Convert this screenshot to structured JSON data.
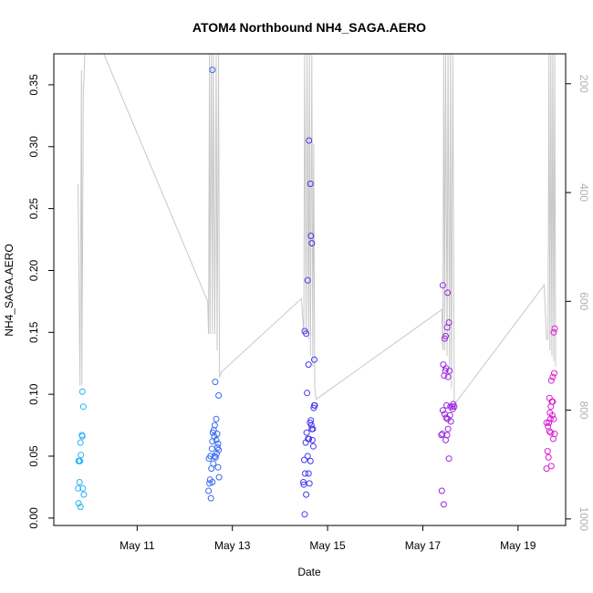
{
  "chart_data": {
    "type": "scatter",
    "title": "ATOM4 Northbound NH4_SAGA.AERO",
    "xlabel": "Date",
    "ylabel": "NH4_SAGA.AERO",
    "x_ticks": [
      "May 11",
      "May 13",
      "May 15",
      "May 17",
      "May 19"
    ],
    "x_tick_days": [
      11,
      13,
      15,
      17,
      19
    ],
    "xlim_days": [
      9.25,
      20.0
    ],
    "ylim": [
      -0.006,
      0.375
    ],
    "y_ticks": [
      0.0,
      0.05,
      0.1,
      0.15,
      0.2,
      0.25,
      0.3,
      0.35
    ],
    "y_tick_labels": [
      "0.00",
      "0.05",
      "0.10",
      "0.15",
      "0.20",
      "0.25",
      "0.30",
      "0.35"
    ],
    "y2_ticks": [
      200,
      400,
      600,
      800,
      1000
    ],
    "y2lim_inverted": [
      1012,
      145
    ],
    "grid": false,
    "legend": "none",
    "colors": {
      "start": "#29b6f6",
      "mid": "#4433ee",
      "end": "#e01bcf",
      "altitude_line": "#c8c8c8"
    },
    "series": [
      {
        "values": [
          [
            9.77,
            0.012
          ],
          [
            9.81,
            0.009
          ],
          [
            9.76,
            0.024
          ],
          [
            9.79,
            0.029
          ],
          [
            9.86,
            0.024
          ],
          [
            9.88,
            0.019
          ],
          [
            9.77,
            0.046
          ],
          [
            9.8,
            0.046
          ],
          [
            9.82,
            0.051
          ],
          [
            9.79,
            0.046
          ],
          [
            9.81,
            0.061
          ],
          [
            9.84,
            0.067
          ],
          [
            9.85,
            0.066
          ],
          [
            9.87,
            0.09
          ],
          [
            9.85,
            0.102
          ],
          [
            12.5,
            0.022
          ],
          [
            12.52,
            0.028
          ],
          [
            12.55,
            0.016
          ],
          [
            12.53,
            0.031
          ],
          [
            12.58,
            0.029
          ],
          [
            12.56,
            0.04
          ],
          [
            12.6,
            0.044
          ],
          [
            12.63,
            0.05
          ],
          [
            12.65,
            0.049
          ],
          [
            12.67,
            0.052
          ],
          [
            12.7,
            0.041
          ],
          [
            12.72,
            0.033
          ],
          [
            12.51,
            0.048
          ],
          [
            12.54,
            0.05
          ],
          [
            12.57,
            0.056
          ],
          [
            12.59,
            0.069
          ],
          [
            12.61,
            0.071
          ],
          [
            12.63,
            0.075
          ],
          [
            12.66,
            0.08
          ],
          [
            12.68,
            0.068
          ],
          [
            12.7,
            0.06
          ],
          [
            12.69,
            0.057
          ],
          [
            12.71,
            0.055
          ],
          [
            12.66,
            0.063
          ],
          [
            12.62,
            0.066
          ],
          [
            12.58,
            0.062
          ],
          [
            12.64,
            0.11
          ],
          [
            12.71,
            0.099
          ],
          [
            12.58,
            0.362
          ],
          [
            14.52,
            0.003
          ],
          [
            14.55,
            0.019
          ],
          [
            14.5,
            0.027
          ],
          [
            14.53,
            0.036
          ],
          [
            14.49,
            0.029
          ],
          [
            14.6,
            0.036
          ],
          [
            14.62,
            0.028
          ],
          [
            14.58,
            0.05
          ],
          [
            14.64,
            0.046
          ],
          [
            14.51,
            0.047
          ],
          [
            14.54,
            0.061
          ],
          [
            14.56,
            0.069
          ],
          [
            14.59,
            0.064
          ],
          [
            14.61,
            0.064
          ],
          [
            14.63,
            0.077
          ],
          [
            14.65,
            0.079
          ],
          [
            14.67,
            0.072
          ],
          [
            14.68,
            0.063
          ],
          [
            14.7,
            0.058
          ],
          [
            14.66,
            0.075
          ],
          [
            14.69,
            0.072
          ],
          [
            14.71,
            0.089
          ],
          [
            14.73,
            0.091
          ],
          [
            14.72,
            0.091
          ],
          [
            14.57,
            0.101
          ],
          [
            14.6,
            0.124
          ],
          [
            14.52,
            0.151
          ],
          [
            14.55,
            0.149
          ],
          [
            14.58,
            0.192
          ],
          [
            14.67,
            0.222
          ],
          [
            14.65,
            0.228
          ],
          [
            14.64,
            0.27
          ],
          [
            14.61,
            0.305
          ],
          [
            14.72,
            0.128
          ],
          [
            17.4,
            0.022
          ],
          [
            17.44,
            0.011
          ],
          [
            17.39,
            0.067
          ],
          [
            17.41,
            0.068
          ],
          [
            17.48,
            0.063
          ],
          [
            17.51,
            0.067
          ],
          [
            17.55,
            0.048
          ],
          [
            17.53,
            0.072
          ],
          [
            17.42,
            0.087
          ],
          [
            17.46,
            0.084
          ],
          [
            17.49,
            0.081
          ],
          [
            17.52,
            0.08
          ],
          [
            17.57,
            0.083
          ],
          [
            17.59,
            0.078
          ],
          [
            17.62,
            0.09
          ],
          [
            17.64,
            0.092
          ],
          [
            17.66,
            0.09
          ],
          [
            17.63,
            0.088
          ],
          [
            17.5,
            0.091
          ],
          [
            17.58,
            0.09
          ],
          [
            17.45,
            0.115
          ],
          [
            17.47,
            0.119
          ],
          [
            17.49,
            0.121
          ],
          [
            17.43,
            0.124
          ],
          [
            17.53,
            0.114
          ],
          [
            17.56,
            0.119
          ],
          [
            17.46,
            0.145
          ],
          [
            17.48,
            0.147
          ],
          [
            17.51,
            0.154
          ],
          [
            17.55,
            0.158
          ],
          [
            17.52,
            0.182
          ],
          [
            17.42,
            0.188
          ],
          [
            19.6,
            0.04
          ],
          [
            19.62,
            0.054
          ],
          [
            19.64,
            0.049
          ],
          [
            19.7,
            0.042
          ],
          [
            19.77,
            0.068
          ],
          [
            19.74,
            0.064
          ],
          [
            19.66,
            0.07
          ],
          [
            19.69,
            0.069
          ],
          [
            19.63,
            0.074
          ],
          [
            19.6,
            0.077
          ],
          [
            19.65,
            0.077
          ],
          [
            19.68,
            0.08
          ],
          [
            19.72,
            0.083
          ],
          [
            19.75,
            0.08
          ],
          [
            19.67,
            0.085
          ],
          [
            19.69,
            0.09
          ],
          [
            19.71,
            0.094
          ],
          [
            19.73,
            0.094
          ],
          [
            19.66,
            0.097
          ],
          [
            19.7,
            0.111
          ],
          [
            19.73,
            0.114
          ],
          [
            19.76,
            0.117
          ],
          [
            19.75,
            0.15
          ],
          [
            19.77,
            0.153
          ]
        ]
      }
    ],
    "altitude_trace": [
      [
        9.76,
        385
      ],
      [
        9.8,
        755
      ],
      [
        9.83,
        175
      ],
      [
        9.84,
        755
      ],
      [
        9.87,
        200
      ],
      [
        9.88,
        200
      ],
      [
        9.9,
        145
      ],
      [
        10.3,
        145
      ],
      [
        12.48,
        600
      ],
      [
        12.5,
        660
      ],
      [
        12.52,
        145
      ],
      [
        12.53,
        660
      ],
      [
        12.56,
        145
      ],
      [
        12.58,
        660
      ],
      [
        12.6,
        145
      ],
      [
        12.63,
        660
      ],
      [
        12.66,
        145
      ],
      [
        12.68,
        690
      ],
      [
        12.71,
        145
      ],
      [
        12.73,
        740
      ],
      [
        12.77,
        730
      ],
      [
        14.45,
        595
      ],
      [
        14.5,
        660
      ],
      [
        14.52,
        145
      ],
      [
        14.55,
        660
      ],
      [
        14.57,
        145
      ],
      [
        14.6,
        670
      ],
      [
        14.62,
        145
      ],
      [
        14.64,
        700
      ],
      [
        14.67,
        145
      ],
      [
        14.69,
        720
      ],
      [
        14.71,
        310
      ],
      [
        14.73,
        760
      ],
      [
        14.76,
        780
      ],
      [
        17.4,
        615
      ],
      [
        17.42,
        690
      ],
      [
        17.44,
        145
      ],
      [
        17.46,
        690
      ],
      [
        17.48,
        145
      ],
      [
        17.51,
        700
      ],
      [
        17.53,
        145
      ],
      [
        17.56,
        720
      ],
      [
        17.58,
        145
      ],
      [
        17.6,
        760
      ],
      [
        17.63,
        145
      ],
      [
        17.66,
        790
      ],
      [
        19.55,
        570
      ],
      [
        19.6,
        670
      ],
      [
        19.63,
        670
      ],
      [
        19.65,
        145
      ],
      [
        19.67,
        690
      ],
      [
        19.69,
        145
      ],
      [
        19.71,
        700
      ],
      [
        19.73,
        145
      ],
      [
        19.75,
        710
      ],
      [
        19.77,
        145
      ],
      [
        19.79,
        720
      ]
    ]
  }
}
